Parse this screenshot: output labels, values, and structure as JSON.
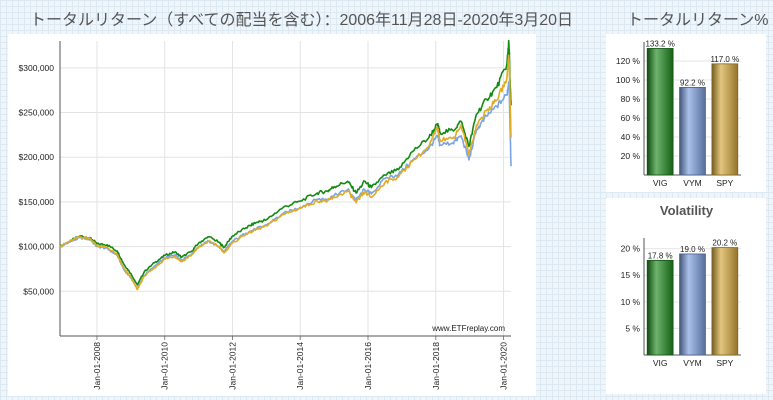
{
  "titles": {
    "main": "トータルリターン（すべての配当を含む）：2006年11月28日-2020年3月20日",
    "side": "トータルリターン%"
  },
  "chart_data": [
    {
      "type": "line",
      "title": "トータルリターン（すべての配当を含む）：2006年11月28日-2020年3月20日",
      "watermark": "www.ETFreplay.com",
      "ylim": [
        0,
        330000
      ],
      "y_ticks": [
        50000,
        100000,
        150000,
        200000,
        250000,
        300000
      ],
      "y_tick_labels": [
        "$50,000",
        "$100,000",
        "$150,000",
        "$200,000",
        "$250,000",
        "$300,000"
      ],
      "x_ticks": [
        "Jan-01-2008",
        "Jan-01-2010",
        "Jan-01-2012",
        "Jan-01-2014",
        "Jan-01-2016",
        "Jan-01-2018",
        "Jan-01-2020"
      ],
      "x_tick_years": [
        2008,
        2010,
        2012,
        2014,
        2016,
        2018,
        2020
      ],
      "xlim": [
        2006.91,
        2020.22
      ],
      "grid": true,
      "x": [
        2006.91,
        2007.2,
        2007.5,
        2007.8,
        2008.0,
        2008.3,
        2008.6,
        2008.8,
        2009.0,
        2009.19,
        2009.4,
        2009.7,
        2010.0,
        2010.3,
        2010.5,
        2010.8,
        2011.0,
        2011.3,
        2011.6,
        2011.75,
        2012.0,
        2012.4,
        2012.7,
        2013.0,
        2013.5,
        2014.0,
        2014.5,
        2014.8,
        2015.0,
        2015.4,
        2015.65,
        2015.9,
        2016.1,
        2016.5,
        2016.9,
        2017.3,
        2017.8,
        2018.05,
        2018.12,
        2018.5,
        2018.75,
        2018.98,
        2019.2,
        2019.5,
        2019.8,
        2020.1,
        2020.15,
        2020.17,
        2020.19,
        2020.22
      ],
      "series": [
        {
          "color": "#138a13",
          "values": [
            100000,
            106000,
            112000,
            110000,
            103000,
            102000,
            95000,
            80000,
            70000,
            57000,
            72000,
            82000,
            90000,
            94000,
            88000,
            95000,
            104000,
            111000,
            105000,
            99000,
            112000,
            121000,
            127000,
            130000,
            144000,
            151000,
            160000,
            162000,
            167000,
            173000,
            160000,
            173000,
            166000,
            180000,
            186000,
            206000,
            222000,
            237000,
            228000,
            230000,
            240000,
            212000,
            248000,
            265000,
            278000,
            304000,
            328000,
            318000,
            286000,
            258000
          ]
        },
        {
          "color": "#7ba3e8",
          "values": [
            100000,
            105000,
            110000,
            108000,
            100000,
            98000,
            90000,
            74000,
            65000,
            53000,
            68000,
            78000,
            87000,
            91000,
            85000,
            92000,
            100000,
            106000,
            100000,
            94000,
            106000,
            115000,
            120000,
            124000,
            137000,
            144000,
            153000,
            153000,
            157000,
            164000,
            152000,
            164000,
            159000,
            176000,
            181000,
            196000,
            210000,
            224000,
            214000,
            216000,
            224000,
            197000,
            230000,
            246000,
            257000,
            270000,
            284000,
            272000,
            238000,
            190000
          ]
        },
        {
          "color": "#e0ac25",
          "values": [
            100000,
            106000,
            111000,
            109000,
            101000,
            99000,
            91000,
            75000,
            66000,
            52000,
            67000,
            76000,
            86000,
            89000,
            83000,
            91000,
            99000,
            106000,
            100000,
            93000,
            104000,
            114000,
            119000,
            123000,
            136000,
            143000,
            151000,
            151000,
            155000,
            162000,
            149000,
            161000,
            155000,
            172000,
            178000,
            195000,
            212000,
            233000,
            220000,
            221000,
            236000,
            203000,
            236000,
            252000,
            264000,
            288000,
            314000,
            302000,
            268000,
            222000
          ]
        }
      ]
    },
    {
      "type": "bar",
      "categories": [
        "VIG",
        "VYM",
        "SPY"
      ],
      "values": [
        133.2,
        92.2,
        117.0
      ],
      "value_labels": [
        "133.2 %",
        "92.2 %",
        "117.0 %"
      ],
      "colors": [
        "#1f8a1f",
        "#7b9fdf",
        "#d4a73a"
      ],
      "ylim": [
        0,
        140
      ],
      "y_ticks": [
        20,
        40,
        60,
        80,
        100,
        120
      ],
      "y_tick_labels": [
        "20 %",
        "40 %",
        "60 %",
        "80 %",
        "100 %",
        "120 %"
      ]
    },
    {
      "type": "bar",
      "title": "Volatility",
      "categories": [
        "VIG",
        "VYM",
        "SPY"
      ],
      "values": [
        17.8,
        19.0,
        20.2
      ],
      "value_labels": [
        "17.8 %",
        "19.0 %",
        "20.2 %"
      ],
      "colors": [
        "#1f8a1f",
        "#7b9fdf",
        "#d4a73a"
      ],
      "ylim": [
        0,
        22
      ],
      "y_ticks": [
        5,
        10,
        15,
        20
      ],
      "y_tick_labels": [
        "5 %",
        "10 %",
        "15 %",
        "20 %"
      ]
    }
  ]
}
